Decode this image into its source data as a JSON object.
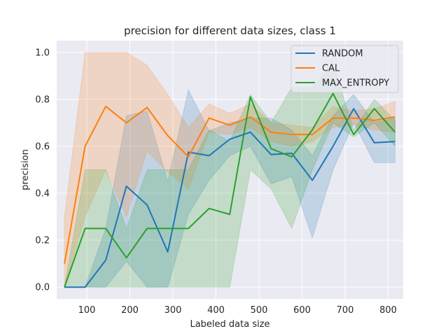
{
  "chart_data": {
    "type": "line",
    "title": "precision for different data sizes, class 1",
    "xlabel": "Labeled data size",
    "ylabel": "precision",
    "xlim": [
      30,
      835
    ],
    "ylim": [
      -0.05,
      1.05
    ],
    "x_ticks": [
      100,
      200,
      300,
      400,
      500,
      600,
      700,
      800
    ],
    "y_ticks": [
      0.0,
      0.2,
      0.4,
      0.6,
      0.8,
      1.0
    ],
    "x_tick_labels": [
      "100",
      "200",
      "300",
      "400",
      "500",
      "600",
      "700",
      "800"
    ],
    "y_tick_labels": [
      "0.0",
      "0.2",
      "0.4",
      "0.6",
      "0.8",
      "1.0"
    ],
    "grid": true,
    "legend_position": "top-right",
    "x": [
      48,
      96,
      144,
      192,
      240,
      288,
      336,
      384,
      432,
      480,
      528,
      576,
      624,
      672,
      720,
      768,
      816
    ],
    "series": [
      {
        "name": "RANDOM",
        "color": "#1f77b4",
        "values": [
          0.0,
          0.0,
          0.115,
          0.43,
          0.35,
          0.15,
          0.575,
          0.56,
          0.63,
          0.66,
          0.565,
          0.57,
          0.455,
          0.6,
          0.76,
          0.615,
          0.62
        ],
        "lower": [
          0.0,
          0.0,
          0.0,
          0.11,
          0.0,
          0.0,
          0.31,
          0.455,
          0.56,
          0.6,
          0.44,
          0.47,
          0.21,
          0.5,
          0.7,
          0.53,
          0.53
        ],
        "upper": [
          0.0,
          0.0,
          0.25,
          0.73,
          0.75,
          0.45,
          0.84,
          0.665,
          0.7,
          0.72,
          0.72,
          0.67,
          0.56,
          0.73,
          0.82,
          0.7,
          0.72
        ]
      },
      {
        "name": "CAL",
        "color": "#ff7f0e",
        "values": [
          0.1,
          0.6,
          0.77,
          0.7,
          0.765,
          0.645,
          0.555,
          0.72,
          0.69,
          0.725,
          0.66,
          0.65,
          0.65,
          0.72,
          0.72,
          0.71,
          0.725
        ],
        "lower": [
          0.0,
          0.3,
          0.5,
          0.3,
          0.58,
          0.49,
          0.42,
          0.66,
          0.65,
          0.68,
          0.62,
          0.6,
          0.62,
          0.68,
          0.69,
          0.67,
          0.66
        ],
        "upper": [
          0.3,
          1.0,
          1.0,
          1.0,
          0.945,
          0.82,
          0.68,
          0.78,
          0.74,
          0.78,
          0.7,
          0.69,
          0.68,
          0.77,
          0.75,
          0.76,
          0.79
        ]
      },
      {
        "name": "MAX_ENTROPY",
        "color": "#2ca02c",
        "values": [
          0.0,
          0.25,
          0.25,
          0.125,
          0.25,
          0.25,
          0.25,
          0.335,
          0.31,
          0.81,
          0.59,
          0.555,
          0.67,
          0.825,
          0.65,
          0.76,
          0.66
        ],
        "lower": [
          0.0,
          0.0,
          0.0,
          0.0,
          0.0,
          0.0,
          0.0,
          0.0,
          0.0,
          0.5,
          0.42,
          0.25,
          0.5,
          0.7,
          0.64,
          0.7,
          0.6
        ],
        "upper": [
          0.0,
          0.5,
          0.5,
          0.25,
          0.5,
          0.5,
          0.5,
          0.67,
          0.62,
          0.82,
          0.7,
          0.85,
          0.85,
          0.95,
          0.67,
          0.8,
          0.71
        ]
      }
    ]
  }
}
